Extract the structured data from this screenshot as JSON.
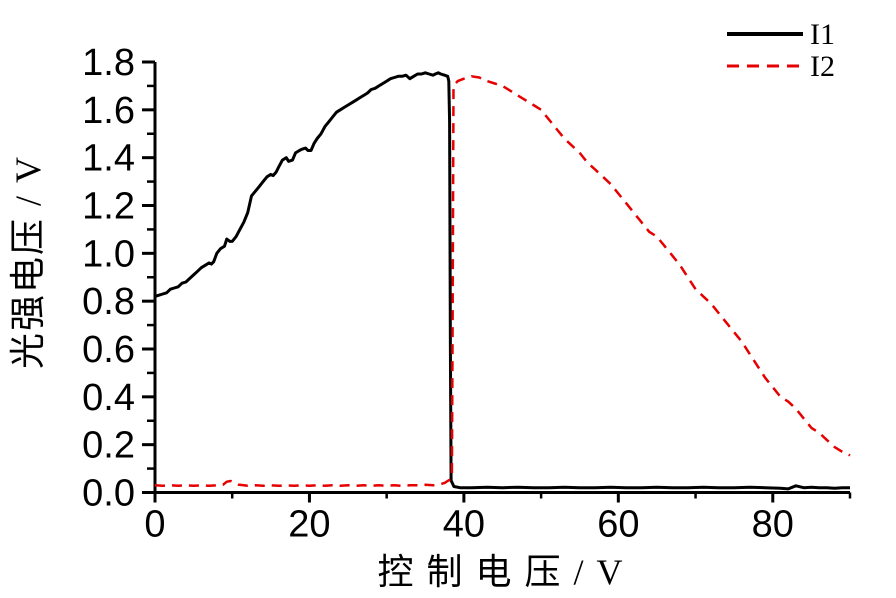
{
  "figure": {
    "background_color": "#ffffff",
    "axis_color": "#000000"
  },
  "legend": {
    "position": "top-right",
    "items": [
      {
        "label": "I1",
        "color": "#000000",
        "style": "solid"
      },
      {
        "label": "I2",
        "color": "#e60000",
        "style": "dashed"
      }
    ]
  },
  "chart_data": {
    "type": "line",
    "title": "",
    "xlabel": "控 制 电 压 / V",
    "ylabel": "光强电压 / V",
    "xlim": [
      0,
      90
    ],
    "ylim": [
      0,
      1.8
    ],
    "grid": false,
    "legend_position": "top-right",
    "x_major_ticks": [
      "0",
      "20",
      "40",
      "60",
      "80"
    ],
    "x_minor_ticks": [
      10,
      30,
      50,
      70,
      90
    ],
    "y_major_ticks": [
      "0.0",
      "0.2",
      "0.4",
      "0.6",
      "0.8",
      "1.0",
      "1.2",
      "1.4",
      "1.6",
      "1.8"
    ],
    "y_minor_ticks": [
      0.1,
      0.3,
      0.5,
      0.7,
      0.9,
      1.1,
      1.3,
      1.5,
      1.7
    ],
    "series": [
      {
        "name": "I1",
        "color": "#000000",
        "style": "solid",
        "line_width": 3,
        "points": [
          [
            0,
            0.82
          ],
          [
            0.5,
            0.825
          ],
          [
            1,
            0.83
          ],
          [
            1.5,
            0.835
          ],
          [
            2,
            0.85
          ],
          [
            2.5,
            0.855
          ],
          [
            3,
            0.86
          ],
          [
            3.5,
            0.875
          ],
          [
            4,
            0.88
          ],
          [
            4.5,
            0.895
          ],
          [
            5,
            0.91
          ],
          [
            5.5,
            0.925
          ],
          [
            6,
            0.94
          ],
          [
            6.5,
            0.95
          ],
          [
            7,
            0.96
          ],
          [
            7.3,
            0.955
          ],
          [
            7.6,
            0.965
          ],
          [
            8,
            1.0
          ],
          [
            8.5,
            1.02
          ],
          [
            9,
            1.03
          ],
          [
            9.3,
            1.06
          ],
          [
            9.7,
            1.05
          ],
          [
            10,
            1.05
          ],
          [
            10.5,
            1.07
          ],
          [
            11,
            1.1
          ],
          [
            11.5,
            1.13
          ],
          [
            12,
            1.17
          ],
          [
            12.5,
            1.24
          ],
          [
            13,
            1.26
          ],
          [
            13.5,
            1.28
          ],
          [
            14,
            1.3
          ],
          [
            14.5,
            1.32
          ],
          [
            15,
            1.33
          ],
          [
            15.3,
            1.325
          ],
          [
            15.7,
            1.34
          ],
          [
            16,
            1.36
          ],
          [
            16.5,
            1.39
          ],
          [
            17,
            1.4
          ],
          [
            17.3,
            1.385
          ],
          [
            17.8,
            1.39
          ],
          [
            18.2,
            1.42
          ],
          [
            18.7,
            1.43
          ],
          [
            19,
            1.435
          ],
          [
            19.5,
            1.44
          ],
          [
            19.8,
            1.43
          ],
          [
            20.2,
            1.43
          ],
          [
            20.6,
            1.46
          ],
          [
            21,
            1.48
          ],
          [
            21.5,
            1.5
          ],
          [
            22,
            1.53
          ],
          [
            22.5,
            1.55
          ],
          [
            23,
            1.57
          ],
          [
            23.5,
            1.59
          ],
          [
            24,
            1.6
          ],
          [
            24.5,
            1.61
          ],
          [
            25,
            1.62
          ],
          [
            25.5,
            1.63
          ],
          [
            26,
            1.64
          ],
          [
            26.5,
            1.65
          ],
          [
            27,
            1.66
          ],
          [
            27.5,
            1.67
          ],
          [
            28,
            1.685
          ],
          [
            28.5,
            1.69
          ],
          [
            29,
            1.7
          ],
          [
            29.5,
            1.71
          ],
          [
            30,
            1.72
          ],
          [
            30.5,
            1.73
          ],
          [
            31,
            1.735
          ],
          [
            31.5,
            1.74
          ],
          [
            32,
            1.74
          ],
          [
            32.5,
            1.745
          ],
          [
            33,
            1.73
          ],
          [
            33.5,
            1.74
          ],
          [
            34,
            1.75
          ],
          [
            34.5,
            1.75
          ],
          [
            35,
            1.755
          ],
          [
            35.5,
            1.75
          ],
          [
            36,
            1.745
          ],
          [
            36.3,
            1.75
          ],
          [
            36.7,
            1.755
          ],
          [
            37,
            1.75
          ],
          [
            37.5,
            1.745
          ],
          [
            37.9,
            1.74
          ],
          [
            38.05,
            1.72
          ],
          [
            38.15,
            1.55
          ],
          [
            38.25,
            0.6
          ],
          [
            38.35,
            0.05
          ],
          [
            38.7,
            0.025
          ],
          [
            39.5,
            0.02
          ],
          [
            41,
            0.02
          ],
          [
            43,
            0.022
          ],
          [
            45,
            0.02
          ],
          [
            47,
            0.022
          ],
          [
            49,
            0.02
          ],
          [
            51,
            0.02
          ],
          [
            53,
            0.022
          ],
          [
            55,
            0.02
          ],
          [
            57,
            0.02
          ],
          [
            59,
            0.022
          ],
          [
            61,
            0.02
          ],
          [
            63,
            0.02
          ],
          [
            65,
            0.022
          ],
          [
            67,
            0.02
          ],
          [
            69,
            0.02
          ],
          [
            71,
            0.022
          ],
          [
            73,
            0.02
          ],
          [
            75,
            0.02
          ],
          [
            77,
            0.022
          ],
          [
            79,
            0.02
          ],
          [
            81,
            0.018
          ],
          [
            82,
            0.015
          ],
          [
            83,
            0.028
          ],
          [
            84,
            0.02
          ],
          [
            85,
            0.022
          ],
          [
            86,
            0.02
          ],
          [
            87,
            0.02
          ],
          [
            88,
            0.018
          ],
          [
            89,
            0.02
          ],
          [
            90,
            0.02
          ]
        ]
      },
      {
        "name": "I2",
        "color": "#e60000",
        "style": "dashed",
        "line_width": 2.5,
        "dash": [
          10,
          7
        ],
        "points": [
          [
            0,
            0.03
          ],
          [
            1,
            0.028
          ],
          [
            2,
            0.03
          ],
          [
            3,
            0.028
          ],
          [
            4,
            0.03
          ],
          [
            5,
            0.028
          ],
          [
            6,
            0.03
          ],
          [
            7,
            0.028
          ],
          [
            8,
            0.03
          ],
          [
            8.8,
            0.032
          ],
          [
            9.3,
            0.045
          ],
          [
            9.8,
            0.048
          ],
          [
            10.3,
            0.04
          ],
          [
            10.8,
            0.033
          ],
          [
            11.5,
            0.03
          ],
          [
            12,
            0.028
          ],
          [
            13,
            0.03
          ],
          [
            14,
            0.028
          ],
          [
            15,
            0.03
          ],
          [
            16,
            0.028
          ],
          [
            17,
            0.03
          ],
          [
            18,
            0.028
          ],
          [
            19,
            0.03
          ],
          [
            20,
            0.028
          ],
          [
            21,
            0.03
          ],
          [
            22,
            0.028
          ],
          [
            23,
            0.03
          ],
          [
            24,
            0.028
          ],
          [
            25,
            0.03
          ],
          [
            26,
            0.028
          ],
          [
            27,
            0.03
          ],
          [
            28,
            0.028
          ],
          [
            29,
            0.03
          ],
          [
            30,
            0.028
          ],
          [
            31,
            0.03
          ],
          [
            32,
            0.028
          ],
          [
            33,
            0.03
          ],
          [
            34,
            0.03
          ],
          [
            35,
            0.032
          ],
          [
            36,
            0.03
          ],
          [
            37,
            0.035
          ],
          [
            37.5,
            0.04
          ],
          [
            38,
            0.05
          ],
          [
            38.3,
            0.055
          ],
          [
            38.45,
            0.07
          ],
          [
            38.55,
            0.8
          ],
          [
            38.65,
            1.7
          ],
          [
            39.2,
            1.72
          ],
          [
            40,
            1.73
          ],
          [
            41,
            1.74
          ],
          [
            42,
            1.735
          ],
          [
            43,
            1.72
          ],
          [
            44,
            1.71
          ],
          [
            45,
            1.7
          ],
          [
            46,
            1.68
          ],
          [
            47,
            1.66
          ],
          [
            48,
            1.64
          ],
          [
            49,
            1.62
          ],
          [
            50,
            1.6
          ],
          [
            51,
            1.56
          ],
          [
            52,
            1.52
          ],
          [
            53,
            1.48
          ],
          [
            54,
            1.45
          ],
          [
            55,
            1.42
          ],
          [
            56,
            1.38
          ],
          [
            57,
            1.35
          ],
          [
            58,
            1.32
          ],
          [
            59,
            1.29
          ],
          [
            60,
            1.25
          ],
          [
            61,
            1.21
          ],
          [
            62,
            1.17
          ],
          [
            63,
            1.13
          ],
          [
            64,
            1.09
          ],
          [
            65,
            1.07
          ],
          [
            66,
            1.03
          ],
          [
            67,
            0.99
          ],
          [
            68,
            0.95
          ],
          [
            69,
            0.9
          ],
          [
            70,
            0.85
          ],
          [
            71,
            0.82
          ],
          [
            72,
            0.79
          ],
          [
            73,
            0.75
          ],
          [
            74,
            0.71
          ],
          [
            75,
            0.67
          ],
          [
            76,
            0.63
          ],
          [
            77,
            0.58
          ],
          [
            78,
            0.53
          ],
          [
            79,
            0.48
          ],
          [
            80,
            0.44
          ],
          [
            81,
            0.4
          ],
          [
            82,
            0.38
          ],
          [
            83,
            0.35
          ],
          [
            84,
            0.31
          ],
          [
            85,
            0.27
          ],
          [
            86,
            0.25
          ],
          [
            87,
            0.22
          ],
          [
            88,
            0.19
          ],
          [
            89,
            0.17
          ],
          [
            90,
            0.155
          ]
        ]
      }
    ]
  }
}
